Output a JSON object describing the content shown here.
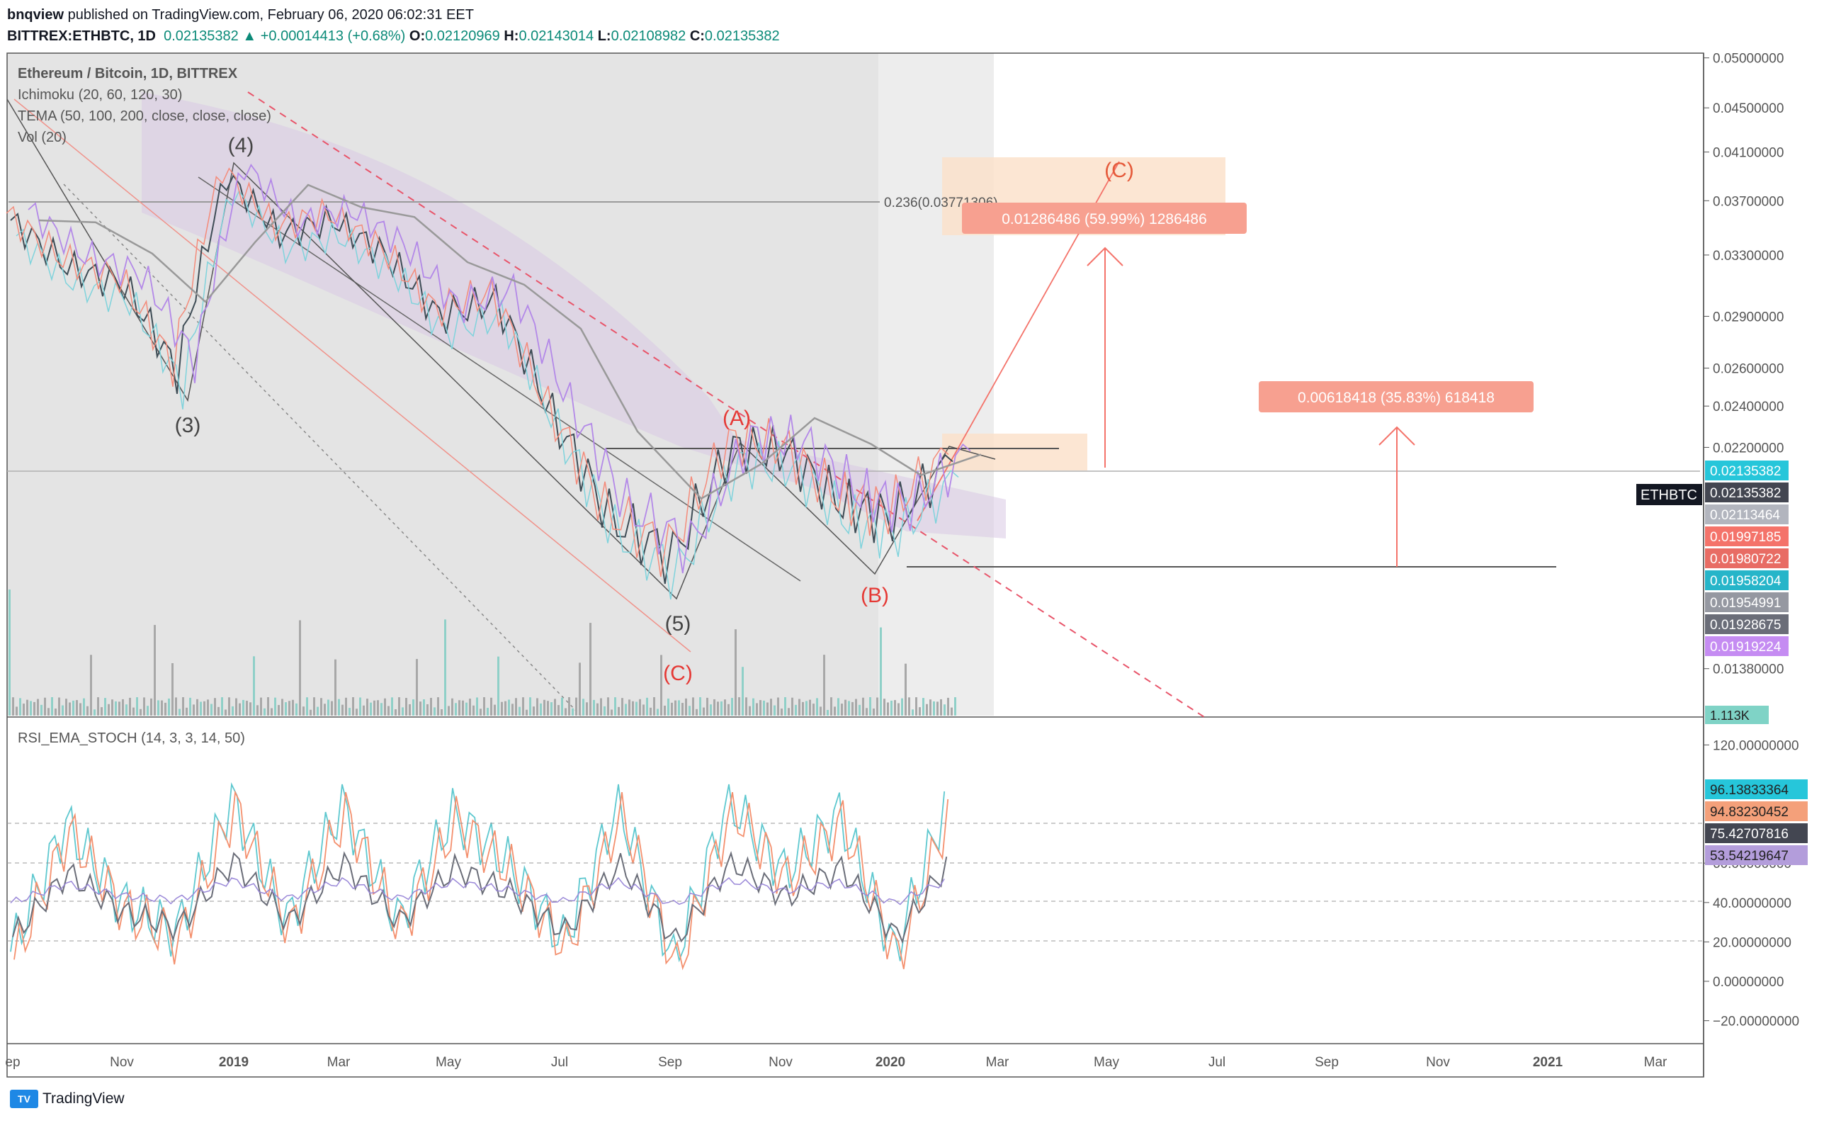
{
  "header": {
    "publisher": "bnqview",
    "published_text": "published on TradingView.com, February 06, 2020 06:02:31 EET",
    "symbol": "BITTREX:ETHBTC, 1D",
    "last": "0.02135382",
    "change": "▲ +0.00014413 (+0.68%)",
    "o_label": "O:",
    "o": "0.02120969",
    "h_label": "H:",
    "h": "0.02143014",
    "l_label": "L:",
    "l": "0.02108982",
    "c_label": "C:",
    "c": "0.02135382"
  },
  "legend": {
    "title": "Ethereum / Bitcoin, 1D, BITTREX",
    "ichimoku": "Ichimoku (20, 60, 120, 30)",
    "tema": "TEMA (50, 100, 200, close, close, close)",
    "vol": "Vol (20)",
    "rsi": "RSI_EMA_STOCH (14, 3, 3, 14, 50)"
  },
  "annotations": {
    "wave_3": "(3)",
    "wave_4": "(4)",
    "wave_5": "(5)",
    "wave_c_low": "(C)",
    "wave_a": "(A)",
    "wave_b": "(B)",
    "wave_c_target": "(C)",
    "fib": "0.236(0.03771306)",
    "measure_1": "0.01286486 (59.99%) 1286486",
    "measure_2": "0.00618418 (35.83%) 618418",
    "symbol_tag": "ETHBTC"
  },
  "price_axis": {
    "ticks": [
      "0.05000000",
      "0.04500000",
      "0.04100000",
      "0.03700000",
      "0.03300000",
      "0.02900000",
      "0.02600000",
      "0.02400000",
      "0.02200000",
      "0.01380000"
    ],
    "tick_values": [
      0.05,
      0.045,
      0.041,
      0.037,
      0.033,
      0.029,
      0.026,
      0.024,
      0.022,
      0.0138
    ],
    "badges": [
      {
        "text": "0.02135382",
        "color": "#26c6da"
      },
      {
        "text": "0.02135382",
        "color": "#434651"
      },
      {
        "text": "0.02113464",
        "color": "#b2b5be"
      },
      {
        "text": "0.01997185",
        "color": "#f4736a"
      },
      {
        "text": "0.01980722",
        "color": "#e86c64"
      },
      {
        "text": "0.01958204",
        "color": "#26b5c9"
      },
      {
        "text": "0.01954991",
        "color": "#9598a1"
      },
      {
        "text": "0.01928675",
        "color": "#6a6d78"
      },
      {
        "text": "0.01919224",
        "color": "#c58cf2"
      }
    ],
    "vol_badge": {
      "text": "1.113K",
      "color": "#7fd3c6"
    }
  },
  "rsi_axis": {
    "ticks": [
      "120.00000000",
      "60.00000000",
      "40.00000000",
      "20.00000000",
      "0.00000000",
      "−20.00000000"
    ],
    "tick_values": [
      120,
      60,
      40,
      20,
      0,
      -20
    ],
    "badges": [
      {
        "text": "96.13833364",
        "color": "#26c6da"
      },
      {
        "text": "94.83230452",
        "color": "#f4a07a"
      },
      {
        "text": "75.42707816",
        "color": "#434651"
      },
      {
        "text": "53.54219647",
        "color": "#b39ddb"
      }
    ]
  },
  "time_axis": {
    "labels": [
      "ep",
      "Nov",
      "2019",
      "Mar",
      "May",
      "Jul",
      "Sep",
      "Nov",
      "2020",
      "Mar",
      "May",
      "Jul",
      "Sep",
      "Nov",
      "2021",
      "Mar"
    ],
    "bold": [
      "2019",
      "2020",
      "2021"
    ]
  },
  "footer": {
    "brand": "TradingView",
    "logo": "TV"
  },
  "chart_data": {
    "type": "line",
    "title": "Ethereum / Bitcoin, 1D, BITTREX",
    "x": [
      "2018-09",
      "2018-10",
      "2018-11",
      "2018-12",
      "2019-01",
      "2019-02",
      "2019-03",
      "2019-04",
      "2019-05",
      "2019-06",
      "2019-07",
      "2019-08",
      "2019-09",
      "2019-10",
      "2019-11",
      "2019-12",
      "2020-01",
      "2020-02"
    ],
    "series": [
      {
        "name": "ETHBTC",
        "values": [
          0.0355,
          0.0322,
          0.031,
          0.0258,
          0.039,
          0.0345,
          0.0355,
          0.033,
          0.029,
          0.03,
          0.0235,
          0.019,
          0.0175,
          0.022,
          0.0218,
          0.0195,
          0.019,
          0.02135
        ]
      }
    ],
    "rsi_series": [
      {
        "name": "RSI_EMA_STOCH",
        "values": [
          15,
          80,
          40,
          25,
          92,
          30,
          90,
          30,
          85,
          60,
          20,
          90,
          10,
          92,
          55,
          85,
          15,
          96
        ]
      }
    ],
    "ylim": [
      0.0125,
      0.0505
    ],
    "scale": "log",
    "grid": false
  }
}
